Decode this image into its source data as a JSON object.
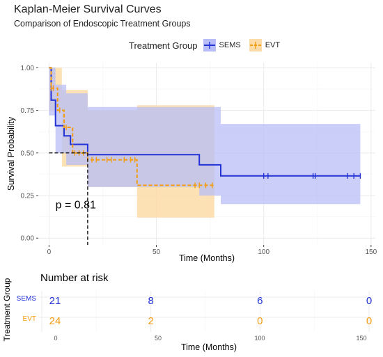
{
  "chart_data": {
    "type": "line",
    "title": "Kaplan-Meier Survival Curves",
    "subtitle": "Comparison of Endoscopic Treatment Groups",
    "xlabel": "Time (Months)",
    "ylabel": "Survival Probability",
    "xlim": [
      -5,
      152
    ],
    "ylim": [
      -0.04,
      1.03
    ],
    "x_ticks": [
      0,
      50,
      100,
      150
    ],
    "y_ticks": [
      0.0,
      0.25,
      0.5,
      0.75,
      1.0
    ],
    "y_tick_labels": [
      "0.00",
      "0.25",
      "0.50",
      "0.75",
      "1.00"
    ],
    "grid": true,
    "legend_title": "Treatment Group",
    "legend_position": "top",
    "annotation": "p = 0.81",
    "median_survival": {
      "x": 18,
      "y": 0.5
    },
    "series": [
      {
        "name": "SEMS",
        "color": "#2433d6",
        "fill": "#b8bdf7",
        "line_style": "solid",
        "steps": [
          [
            0,
            1.0
          ],
          [
            1,
            0.81
          ],
          [
            3,
            0.66
          ],
          [
            7,
            0.6
          ],
          [
            10,
            0.55
          ],
          [
            14,
            0.55
          ],
          [
            18,
            0.49
          ],
          [
            70,
            0.43
          ],
          [
            80,
            0.365
          ],
          [
            145,
            0.365
          ]
        ],
        "upper": [
          [
            0,
            1.0
          ],
          [
            3,
            0.9
          ],
          [
            8,
            0.85
          ],
          [
            18,
            0.77
          ],
          [
            80,
            0.67
          ],
          [
            145,
            0.67
          ]
        ],
        "lower": [
          [
            0,
            0.72
          ],
          [
            3,
            0.5
          ],
          [
            8,
            0.43
          ],
          [
            18,
            0.3
          ],
          [
            70,
            0.25
          ],
          [
            80,
            0.2
          ],
          [
            145,
            0.2
          ]
        ],
        "censor_x": [
          100,
          102,
          123,
          124,
          139,
          142,
          145
        ]
      },
      {
        "name": "EVT",
        "color": "#f39c12",
        "fill": "#fbdca8",
        "line_style": "dashed",
        "steps": [
          [
            0,
            1.0
          ],
          [
            1,
            0.88
          ],
          [
            4,
            0.75
          ],
          [
            7,
            0.65
          ],
          [
            11,
            0.5
          ],
          [
            18,
            0.46
          ],
          [
            41,
            0.31
          ],
          [
            77,
            0.31
          ]
        ],
        "upper": [
          [
            0,
            1.0
          ],
          [
            6,
            0.87
          ],
          [
            18,
            0.75
          ],
          [
            41,
            0.78
          ],
          [
            77,
            0.78
          ]
        ],
        "lower": [
          [
            0,
            0.75
          ],
          [
            6,
            0.42
          ],
          [
            18,
            0.3
          ],
          [
            41,
            0.12
          ],
          [
            77,
            0.12
          ]
        ],
        "censor_x": [
          1,
          2,
          5,
          8,
          12,
          14,
          16,
          20,
          22,
          27,
          29,
          35,
          38,
          40,
          68,
          70,
          73,
          76
        ]
      }
    ],
    "risk_table": {
      "title": "Number at risk",
      "ylabel": "Treatment Group",
      "xlabel": "Time (Months)",
      "times": [
        0,
        50,
        100,
        150
      ],
      "rows": [
        {
          "name": "SEMS",
          "color": "#2433d6",
          "counts": [
            21,
            8,
            6,
            0
          ]
        },
        {
          "name": "EVT",
          "color": "#f39c12",
          "counts": [
            24,
            2,
            0,
            0
          ]
        }
      ]
    }
  }
}
